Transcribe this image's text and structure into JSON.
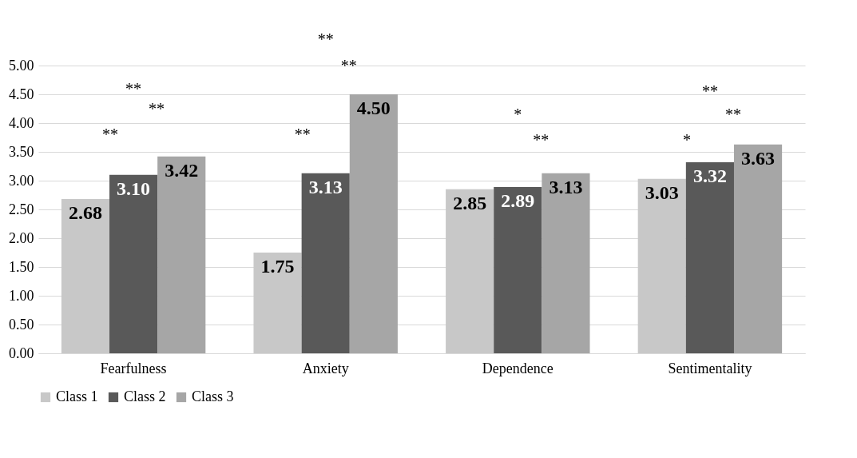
{
  "chart_data": {
    "type": "bar",
    "categories": [
      "Fearfulness",
      "Anxiety",
      "Dependence",
      "Sentimentality"
    ],
    "series": [
      {
        "name": "Class 1",
        "color": "#c8c8c8",
        "values": [
          2.68,
          1.75,
          2.85,
          3.03
        ],
        "value_labels": [
          "2.68",
          "1.75",
          "2.85",
          "3.03"
        ]
      },
      {
        "name": "Class 2",
        "color": "#595959",
        "values": [
          3.1,
          3.13,
          2.89,
          3.32
        ],
        "value_labels": [
          "3.10",
          "3.13",
          "2.89",
          "3.32"
        ]
      },
      {
        "name": "Class 3",
        "color": "#a6a6a6",
        "values": [
          3.42,
          4.5,
          3.13,
          3.63
        ],
        "value_labels": [
          "3.42",
          "4.50",
          "3.13",
          "3.63"
        ]
      }
    ],
    "ylim": [
      0,
      5
    ],
    "yticks": [
      {
        "value": 0,
        "label": "0.00"
      },
      {
        "value": 0.5,
        "label": "0.50"
      },
      {
        "value": 1,
        "label": "1.00"
      },
      {
        "value": 1.5,
        "label": "1.50"
      },
      {
        "value": 2,
        "label": "2.00"
      },
      {
        "value": 2.5,
        "label": "2.50"
      },
      {
        "value": 3,
        "label": "3.00"
      },
      {
        "value": 3.5,
        "label": "3.50"
      },
      {
        "value": 4,
        "label": "4.00"
      },
      {
        "value": 4.5,
        "label": "4.50"
      },
      {
        "value": 5,
        "label": "5.00"
      }
    ],
    "grid": "y",
    "legend": "bottom",
    "annotations": [
      "**",
      "**",
      "**",
      "**",
      "**",
      "**",
      "*",
      "**",
      "**",
      "*",
      "**"
    ]
  }
}
